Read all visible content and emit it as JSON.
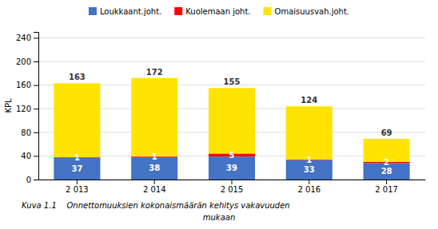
{
  "chart_data": {
    "type": "bar",
    "stacked": true,
    "categories": [
      "2 013",
      "2 014",
      "2 015",
      "2 016",
      "2 017"
    ],
    "series": [
      {
        "name": "Loukkaant.joht.",
        "color": "#4472C4",
        "values": [
          37,
          38,
          39,
          33,
          28
        ],
        "data_labels": true
      },
      {
        "name": "Kuolemaan joht.",
        "color": "#FF0000",
        "values": [
          1,
          1,
          5,
          1,
          2
        ],
        "data_labels": true
      },
      {
        "name": "Omaisuusvah.joht.",
        "color": "#FFE400",
        "values": [
          125,
          133,
          111,
          90,
          39
        ],
        "data_labels": false
      }
    ],
    "totals": [
      163,
      172,
      155,
      124,
      69
    ],
    "y_label": "KPL",
    "ylim": [
      0,
      250
    ],
    "yticks": [
      0,
      40,
      80,
      120,
      160,
      200,
      240
    ],
    "grid": true,
    "caption": [
      "Kuva 1.1    Onnettomuuksien kokonaismäärän kehitys vakavuuden",
      "mukaan"
    ]
  }
}
